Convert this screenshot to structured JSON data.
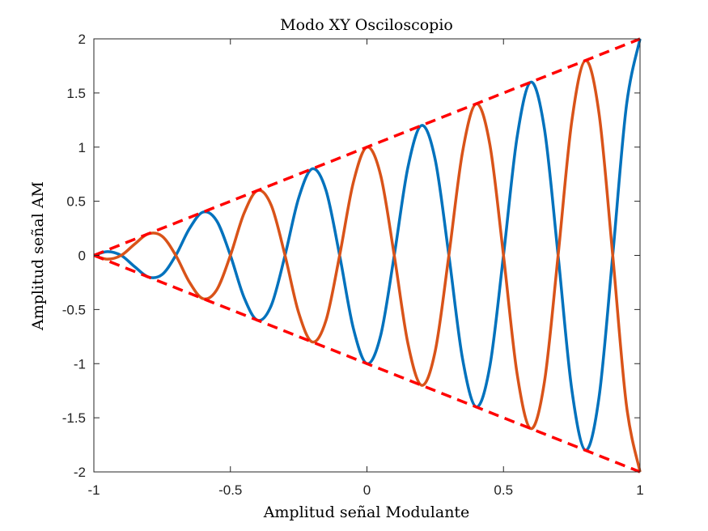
{
  "chart_data": {
    "type": "line",
    "title": "Modo XY Osciloscopio",
    "xlabel": "Amplitud señal Modulante",
    "ylabel": "Amplitud señal AM",
    "xlim": [
      -1,
      1
    ],
    "ylim": [
      -2,
      2
    ],
    "xticks": [
      -1,
      -0.5,
      0,
      0.5,
      1
    ],
    "xtick_labels": [
      "-1",
      "-0.5",
      "0",
      "0.5",
      "1"
    ],
    "yticks": [
      -2,
      -1.5,
      -1,
      -0.5,
      0,
      0.5,
      1,
      1.5,
      2
    ],
    "ytick_labels": [
      "-2",
      "-1.5",
      "-1",
      "-0.5",
      "0",
      "0.5",
      "1",
      "1.5",
      "2"
    ],
    "grid": false,
    "series": [
      {
        "color": "#0072BD",
        "style": "solid",
        "description": "y = (1 + x) * sin(5*pi*x - pi/2), sampled at x = -1..1",
        "x": [
          -1,
          -0.95,
          -0.9,
          -0.85,
          -0.8,
          -0.75,
          -0.7,
          -0.65,
          -0.6,
          -0.55,
          -0.5,
          -0.45,
          -0.4,
          -0.35,
          -0.3,
          -0.25,
          -0.2,
          -0.15,
          -0.1,
          -0.05,
          0,
          0.05,
          0.1,
          0.15,
          0.2,
          0.25,
          0.3,
          0.35,
          0.4,
          0.45,
          0.5,
          0.55,
          0.6,
          0.65,
          0.7,
          0.75,
          0.8,
          0.85,
          0.9,
          0.95,
          1
        ],
        "y": [
          0,
          0.035,
          0,
          -0.106,
          -0.2,
          -0.177,
          0,
          0.247,
          0.4,
          0.318,
          0,
          -0.389,
          -0.6,
          -0.46,
          0,
          0.53,
          0.8,
          0.601,
          0,
          -0.672,
          -1,
          -0.742,
          0,
          0.813,
          1.2,
          0.884,
          0,
          -0.955,
          -1.4,
          -1.025,
          0,
          1.096,
          1.6,
          1.167,
          0,
          -1.237,
          -1.8,
          -1.308,
          0,
          1.379,
          2
        ]
      },
      {
        "color": "#D95319",
        "style": "solid",
        "description": "y = -(1 + x) * sin(5*pi*x - pi/2), sampled at x = -1..1",
        "x": [
          -1,
          -0.95,
          -0.9,
          -0.85,
          -0.8,
          -0.75,
          -0.7,
          -0.65,
          -0.6,
          -0.55,
          -0.5,
          -0.45,
          -0.4,
          -0.35,
          -0.3,
          -0.25,
          -0.2,
          -0.15,
          -0.1,
          -0.05,
          0,
          0.05,
          0.1,
          0.15,
          0.2,
          0.25,
          0.3,
          0.35,
          0.4,
          0.45,
          0.5,
          0.55,
          0.6,
          0.65,
          0.7,
          0.75,
          0.8,
          0.85,
          0.9,
          0.95,
          1
        ],
        "y": [
          0,
          -0.035,
          0,
          0.106,
          0.2,
          0.177,
          0,
          -0.247,
          -0.4,
          -0.318,
          0,
          0.389,
          0.6,
          0.46,
          0,
          -0.53,
          -0.8,
          -0.601,
          0,
          0.672,
          1,
          0.742,
          0,
          -0.813,
          -1.2,
          -0.884,
          0,
          0.955,
          1.4,
          1.025,
          0,
          -1.096,
          -1.6,
          -1.167,
          0,
          1.237,
          1.8,
          1.308,
          0,
          -1.379,
          -2
        ]
      },
      {
        "color": "#FF0000",
        "style": "dashed",
        "description": "upper envelope",
        "x": [
          -1,
          1
        ],
        "y": [
          0,
          2
        ]
      },
      {
        "color": "#FF0000",
        "style": "dashed",
        "description": "lower envelope",
        "x": [
          -1,
          1
        ],
        "y": [
          0,
          -2
        ]
      }
    ]
  }
}
